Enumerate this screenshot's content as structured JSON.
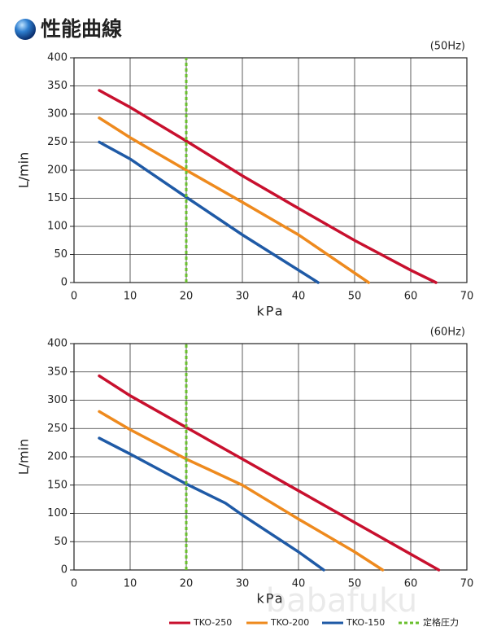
{
  "header": {
    "title": "性能曲線"
  },
  "watermark": "babafuku",
  "chart_data": [
    {
      "type": "line",
      "annotation": "(50Hz)",
      "x_label": "kPa",
      "y_label": "L/min",
      "xlim": [
        0,
        70
      ],
      "xticks": [
        0,
        10,
        20,
        30,
        40,
        50,
        60,
        70
      ],
      "ylim": [
        0,
        400
      ],
      "yticks": [
        0,
        50,
        100,
        150,
        200,
        250,
        300,
        350,
        400
      ],
      "grid": true,
      "series": [
        {
          "name": "TKO-250",
          "color": "#c8102e",
          "x": [
            4.5,
            10,
            20,
            30,
            40,
            50,
            60,
            64.5
          ],
          "values": [
            342,
            312,
            252,
            190,
            132,
            75,
            22,
            0
          ]
        },
        {
          "name": "TKO-200",
          "color": "#ee8a1e",
          "x": [
            4.5,
            10,
            20,
            30,
            40,
            52.5
          ],
          "values": [
            293,
            258,
            200,
            143,
            85,
            0
          ]
        },
        {
          "name": "TKO-150",
          "color": "#1f5aa6",
          "x": [
            4.5,
            10,
            20,
            30,
            43.5
          ],
          "values": [
            250,
            220,
            152,
            85,
            0
          ]
        },
        {
          "name": "定格圧力",
          "color": "#6abf2e",
          "dashed": true,
          "x": [
            20,
            20
          ],
          "values": [
            0,
            400
          ]
        }
      ]
    },
    {
      "type": "line",
      "annotation": "(60Hz)",
      "x_label": "kPa",
      "y_label": "L/min",
      "xlim": [
        0,
        70
      ],
      "xticks": [
        0,
        10,
        20,
        30,
        40,
        50,
        60,
        70
      ],
      "ylim": [
        0,
        400
      ],
      "yticks": [
        0,
        50,
        100,
        150,
        200,
        250,
        300,
        350,
        400
      ],
      "grid": true,
      "series": [
        {
          "name": "TKO-250",
          "color": "#c8102e",
          "x": [
            4.5,
            10,
            20,
            30,
            40,
            50,
            60,
            65
          ],
          "values": [
            343,
            308,
            252,
            196,
            140,
            84,
            28,
            0
          ]
        },
        {
          "name": "TKO-200",
          "color": "#ee8a1e",
          "x": [
            4.5,
            10,
            20,
            30,
            40,
            50,
            55
          ],
          "values": [
            280,
            248,
            196,
            150,
            90,
            32,
            0
          ]
        },
        {
          "name": "TKO-150",
          "color": "#1f5aa6",
          "x": [
            4.5,
            10,
            20,
            27,
            30,
            40,
            44.5
          ],
          "values": [
            233,
            205,
            152,
            118,
            97,
            32,
            0
          ]
        },
        {
          "name": "定格圧力",
          "color": "#6abf2e",
          "dashed": true,
          "x": [
            20,
            20
          ],
          "values": [
            0,
            400
          ]
        }
      ]
    }
  ]
}
